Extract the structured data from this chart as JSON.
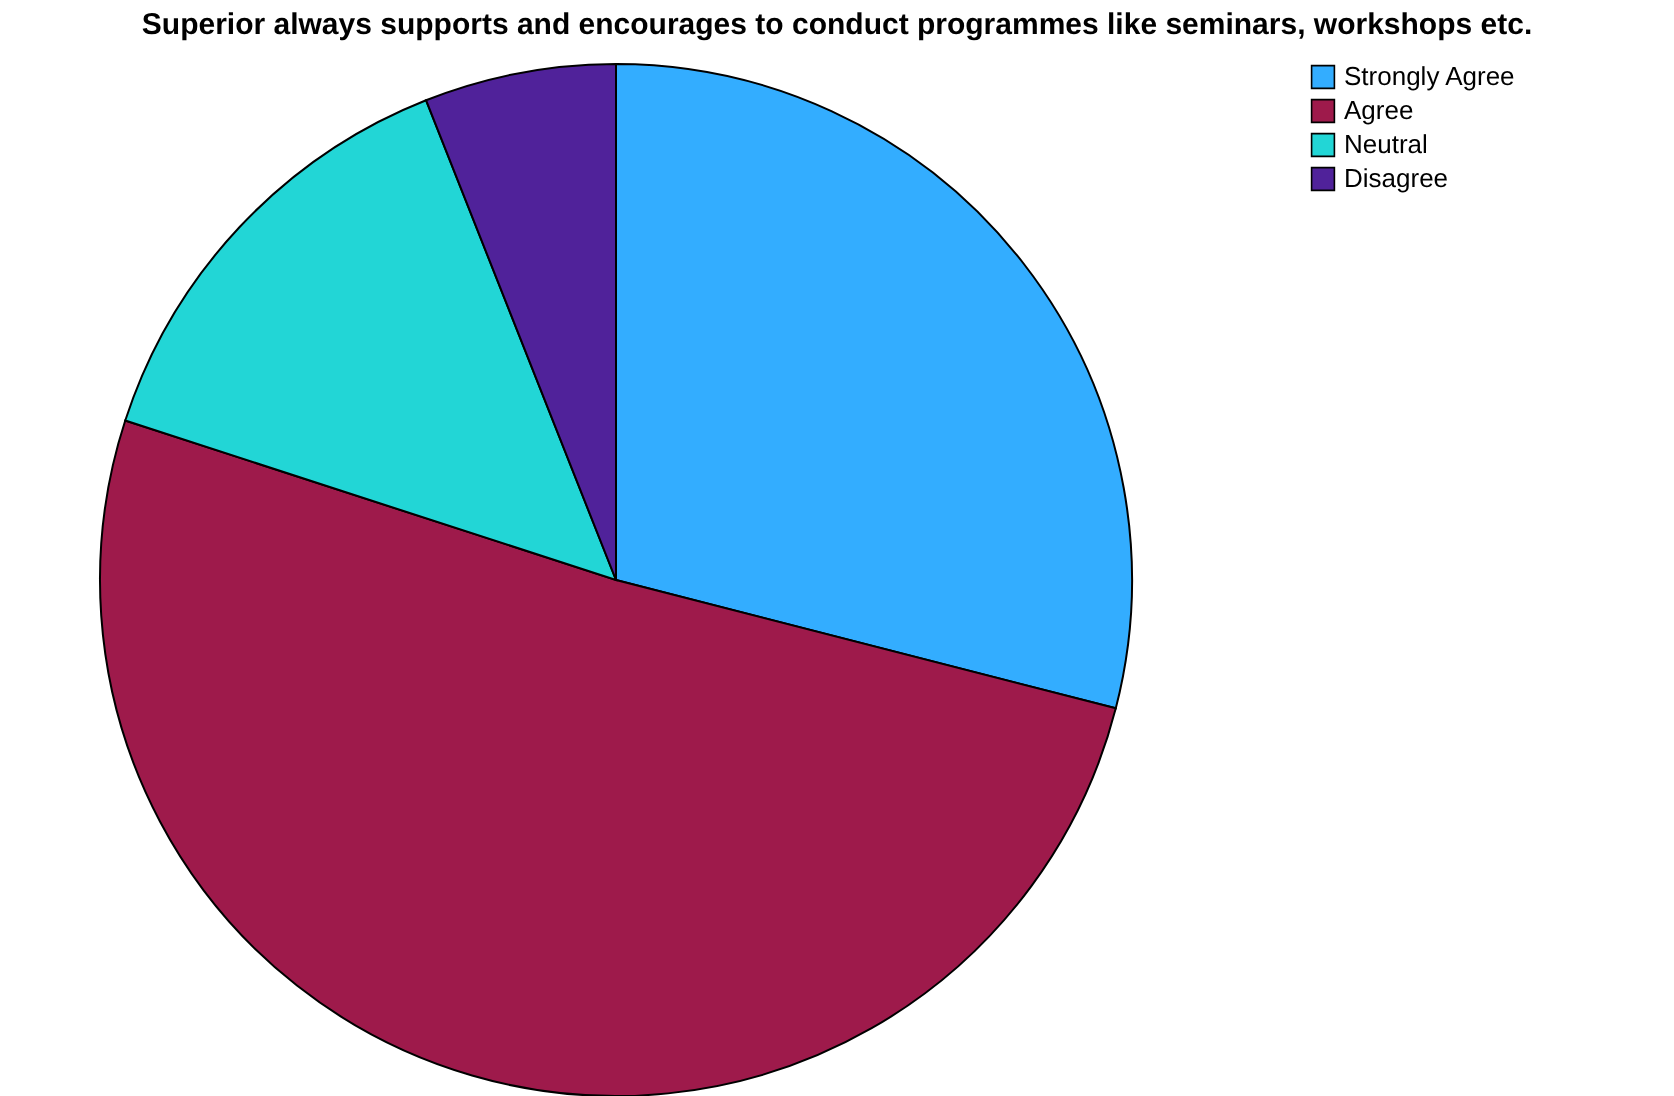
{
  "chart_data": {
    "type": "pie",
    "title": "Superior always supports and encourages to conduct programmes like seminars, workshops etc.",
    "categories": [
      "Strongly Agree",
      "Agree",
      "Neutral",
      "Disagree"
    ],
    "values": [
      29,
      51,
      14,
      6
    ],
    "colors": [
      "#33adff",
      "#9e1a4b",
      "#22d6d6",
      "#50229a"
    ],
    "legend": "top right"
  }
}
